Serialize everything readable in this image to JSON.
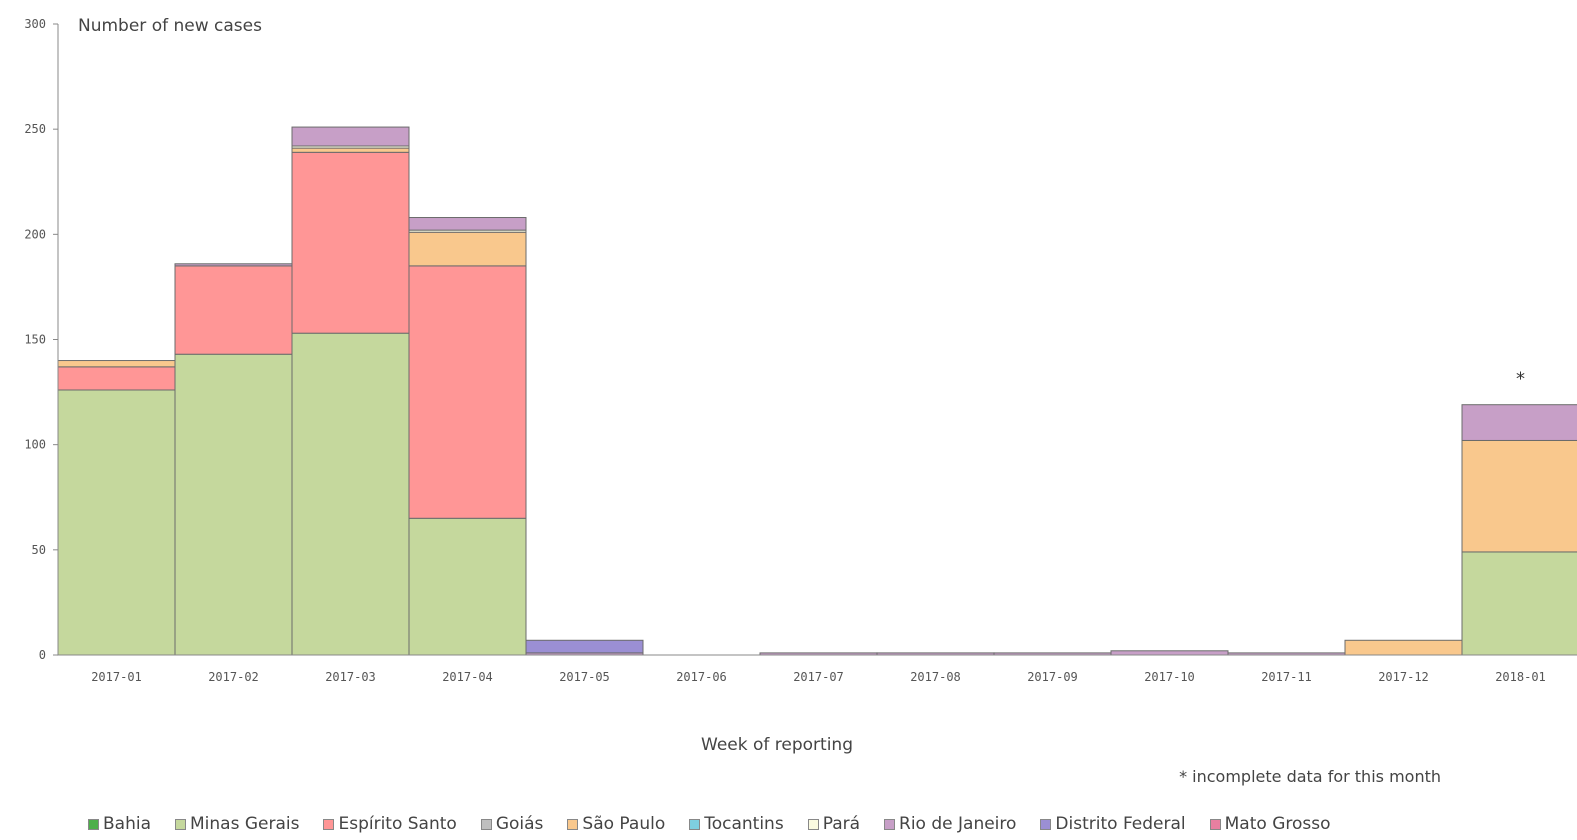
{
  "chart_data": {
    "type": "bar",
    "stacked": true,
    "ylabel": "Number of new cases",
    "xlabel": "Week of reporting",
    "ylim": [
      0,
      300
    ],
    "yticks": [
      0,
      50,
      100,
      150,
      200,
      250,
      300
    ],
    "annotation": "* incomplete data for this month",
    "star_marker": "*",
    "star_category": "2018-01",
    "categories": [
      "2017-01",
      "2017-02",
      "2017-03",
      "2017-04",
      "2017-05",
      "2017-06",
      "2017-07",
      "2017-08",
      "2017-09",
      "2017-10",
      "2017-11",
      "2017-12",
      "2018-01"
    ],
    "series": [
      {
        "name": "Bahia",
        "color": "#4daf4a",
        "values": [
          0,
          0,
          0,
          0,
          0,
          0,
          0,
          0,
          0,
          0,
          0,
          0,
          0
        ]
      },
      {
        "name": "Minas Gerais",
        "color": "#c5d89d",
        "values": [
          126,
          143,
          153,
          65,
          0,
          0,
          0,
          0,
          0,
          0,
          0,
          0,
          49
        ]
      },
      {
        "name": "Espírito Santo",
        "color": "#ff9696",
        "values": [
          11,
          42,
          86,
          120,
          0,
          0,
          0,
          0,
          0,
          0,
          0,
          0,
          0
        ]
      },
      {
        "name": "Goiás",
        "color": "#bfbfbf",
        "values": [
          0,
          0,
          0,
          0,
          0,
          0,
          0,
          0,
          0,
          0,
          0,
          0,
          0
        ]
      },
      {
        "name": "São Paulo",
        "color": "#f9c88d",
        "values": [
          3,
          0,
          2,
          16,
          0,
          0,
          0,
          0,
          0,
          0,
          0,
          7,
          53
        ]
      },
      {
        "name": "Tocantins",
        "color": "#7ecfe0",
        "values": [
          0,
          0,
          0,
          0,
          0,
          0,
          0,
          0,
          0,
          0,
          0,
          0,
          0
        ]
      },
      {
        "name": "Pará",
        "color": "#fafae0",
        "values": [
          0,
          0,
          1,
          1,
          0,
          0,
          0,
          0,
          0,
          0,
          0,
          0,
          0
        ]
      },
      {
        "name": "Rio de Janeiro",
        "color": "#c79fc7",
        "values": [
          0,
          1,
          9,
          6,
          1,
          0,
          1,
          1,
          1,
          2,
          1,
          0,
          17
        ]
      },
      {
        "name": "Distrito Federal",
        "color": "#9b8fd4",
        "values": [
          0,
          0,
          0,
          0,
          6,
          0,
          0,
          0,
          0,
          0,
          0,
          0,
          0
        ]
      },
      {
        "name": "Mato Grosso",
        "color": "#e87fa0",
        "values": [
          0,
          0,
          0,
          0,
          0,
          0,
          0,
          0,
          0,
          0,
          0,
          0,
          0
        ]
      }
    ]
  }
}
